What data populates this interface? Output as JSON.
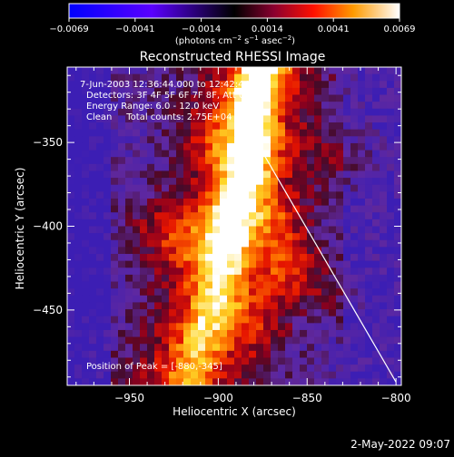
{
  "colorbar": {
    "ticks": [
      "−0.0069",
      "−0.0041",
      "−0.0014",
      "0.0014",
      "0.0041",
      "0.0069"
    ],
    "label_prefix": "(photons cm",
    "label_exp1": "−2",
    "label_mid1": " s",
    "label_exp2": "−1",
    "label_mid2": " asec",
    "label_exp3": "−2",
    "label_suffix": ")",
    "range": [
      -0.0069,
      0.0069
    ]
  },
  "plot": {
    "title": "Reconstructed RHESSI Image",
    "xlabel": "Heliocentric X (arcsec)",
    "ylabel": "Heliocentric Y (arcsec)",
    "xticks": [
      "−950",
      "−900",
      "−850",
      "−800"
    ],
    "yticks": [
      "−350",
      "−400",
      "−450"
    ],
    "info_lines": [
      "7-Jun-2003 12:36:44.000 to 12:42:44.000",
      "Detectors: 3F 4F 5F 6F 7F 8F, Att 0",
      "Energy Range: 6.0 - 12.0 keV",
      "Clean     Total counts: 2.75E+04"
    ],
    "peak_label": "Position of Peak = [-880,-345]"
  },
  "footer": {
    "date": "2-May-2022 09:07"
  },
  "chart_data": {
    "type": "heatmap",
    "title": "Reconstructed RHESSI Image",
    "xlabel": "Heliocentric X (arcsec)",
    "ylabel": "Heliocentric Y (arcsec)",
    "xlim": [
      -985,
      -797
    ],
    "ylim": [
      -495,
      -305
    ],
    "color_range": [
      -0.0069,
      0.0069
    ],
    "peak": [
      -880,
      -345
    ],
    "limb_line": [
      [
        -881,
        -345
      ],
      [
        -800,
        -493
      ]
    ],
    "ridge": [
      [
        -305,
        -875,
        1.0
      ],
      [
        -330,
        -882,
        1.0
      ],
      [
        -345,
        -880,
        1.0
      ],
      [
        -370,
        -885,
        0.9
      ],
      [
        -395,
        -893,
        0.82
      ],
      [
        -420,
        -897,
        0.75
      ],
      [
        -445,
        -902,
        0.7
      ],
      [
        -470,
        -910,
        0.55
      ],
      [
        -495,
        -918,
        0.45
      ]
    ],
    "blobs": [
      [
        -900,
        -350,
        0.55
      ],
      [
        -870,
        -395,
        0.65
      ],
      [
        -860,
        -425,
        0.7
      ],
      [
        -915,
        -410,
        0.55
      ],
      [
        -935,
        -400,
        0.4
      ],
      [
        -880,
        -460,
        0.5
      ],
      [
        -830,
        -360,
        0.35
      ],
      [
        -840,
        -440,
        0.3
      ]
    ]
  }
}
